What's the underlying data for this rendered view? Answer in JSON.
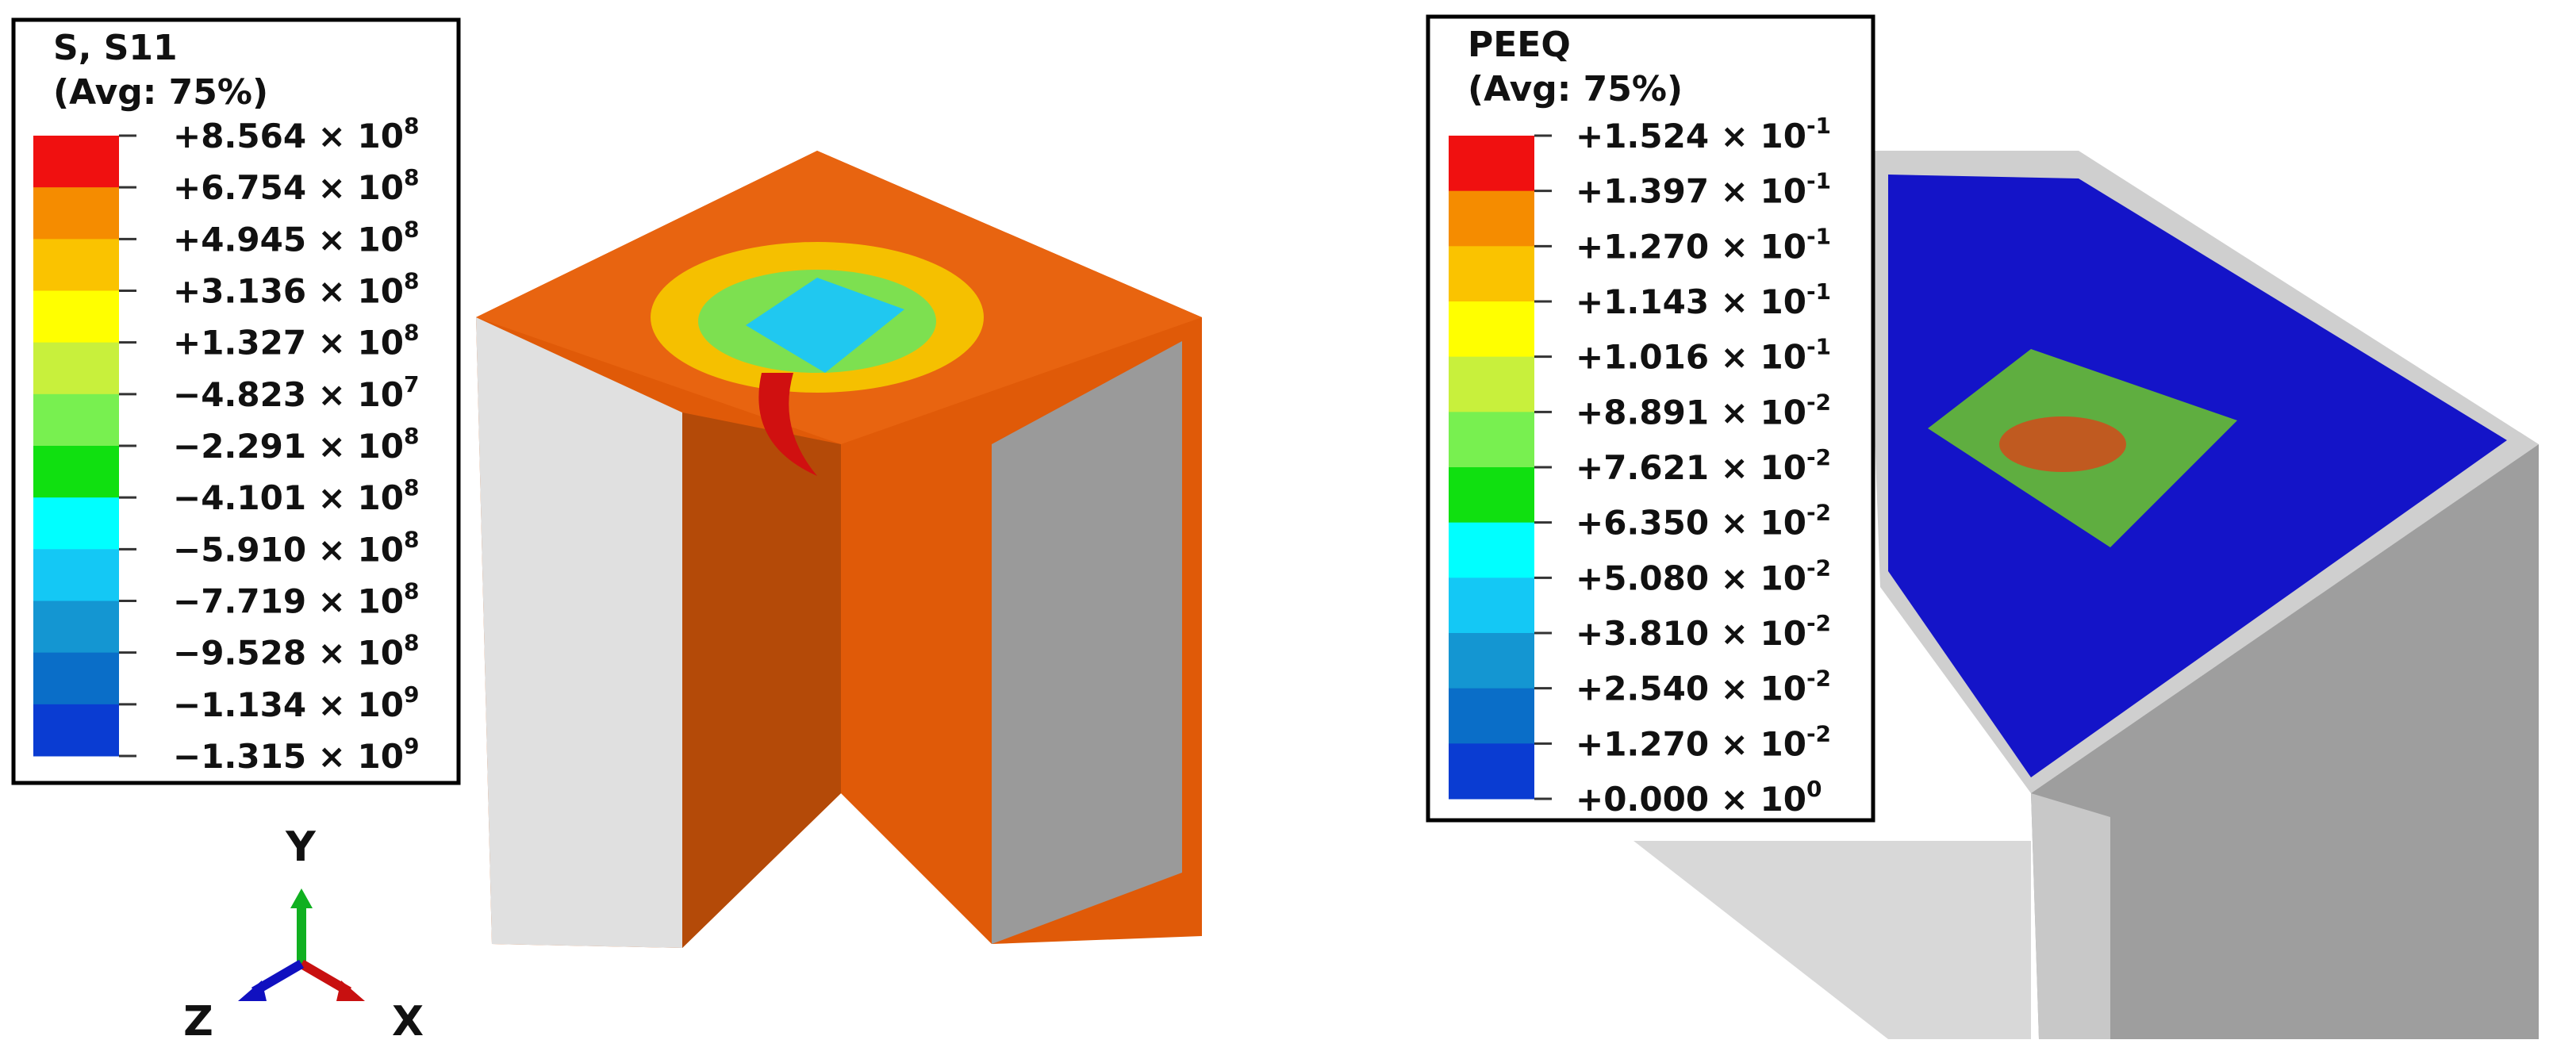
{
  "legends": [
    {
      "title": [
        "S, S11",
        "(Avg: 75%)"
      ],
      "colors": [
        "#f01010",
        "#f58c00",
        "#fac300",
        "#ffff00",
        "#c8f03c",
        "#78f050",
        "#10e010",
        "#00ffff",
        "#14c8f5",
        "#1496d2",
        "#0a6ec8",
        "#0a3cd2"
      ],
      "labels": [
        {
          "mantissa": "+8.564 × 10",
          "exponent": "8"
        },
        {
          "mantissa": "+6.754 × 10",
          "exponent": "8"
        },
        {
          "mantissa": "+4.945 × 10",
          "exponent": "8"
        },
        {
          "mantissa": "+3.136 × 10",
          "exponent": "8"
        },
        {
          "mantissa": "+1.327 × 10",
          "exponent": "8"
        },
        {
          "mantissa": "−4.823 × 10",
          "exponent": "7"
        },
        {
          "mantissa": "−2.291 × 10",
          "exponent": "8"
        },
        {
          "mantissa": "−4.101 × 10",
          "exponent": "8"
        },
        {
          "mantissa": "−5.910 × 10",
          "exponent": "8"
        },
        {
          "mantissa": "−7.719 × 10",
          "exponent": "8"
        },
        {
          "mantissa": "−9.528 × 10",
          "exponent": "8"
        },
        {
          "mantissa": "−1.134 × 10",
          "exponent": "9"
        },
        {
          "mantissa": "−1.315 × 10",
          "exponent": "9"
        }
      ]
    },
    {
      "title": [
        "PEEQ",
        "(Avg: 75%)"
      ],
      "colors": [
        "#f01010",
        "#f58c00",
        "#fac300",
        "#ffff00",
        "#c8f03c",
        "#78f050",
        "#10e010",
        "#00ffff",
        "#14c8f5",
        "#1496d2",
        "#0a6ec8",
        "#0a3cd2"
      ],
      "labels": [
        {
          "mantissa": "+1.524 × 10",
          "exponent": "-1"
        },
        {
          "mantissa": "+1.397 × 10",
          "exponent": "-1"
        },
        {
          "mantissa": "+1.270 × 10",
          "exponent": "-1"
        },
        {
          "mantissa": "+1.143 × 10",
          "exponent": "-1"
        },
        {
          "mantissa": "+1.016 × 10",
          "exponent": "-1"
        },
        {
          "mantissa": "+8.891 × 10",
          "exponent": "-2"
        },
        {
          "mantissa": "+7.621 × 10",
          "exponent": "-2"
        },
        {
          "mantissa": "+6.350 × 10",
          "exponent": "-2"
        },
        {
          "mantissa": "+5.080 × 10",
          "exponent": "-2"
        },
        {
          "mantissa": "+3.810 × 10",
          "exponent": "-2"
        },
        {
          "mantissa": "+2.540 × 10",
          "exponent": "-2"
        },
        {
          "mantissa": "+1.270 × 10",
          "exponent": "-2"
        },
        {
          "mantissa": "+0.000 × 10",
          "exponent": "0"
        }
      ]
    }
  ],
  "triad": {
    "y": "Y",
    "z": "Z",
    "x": "X"
  }
}
